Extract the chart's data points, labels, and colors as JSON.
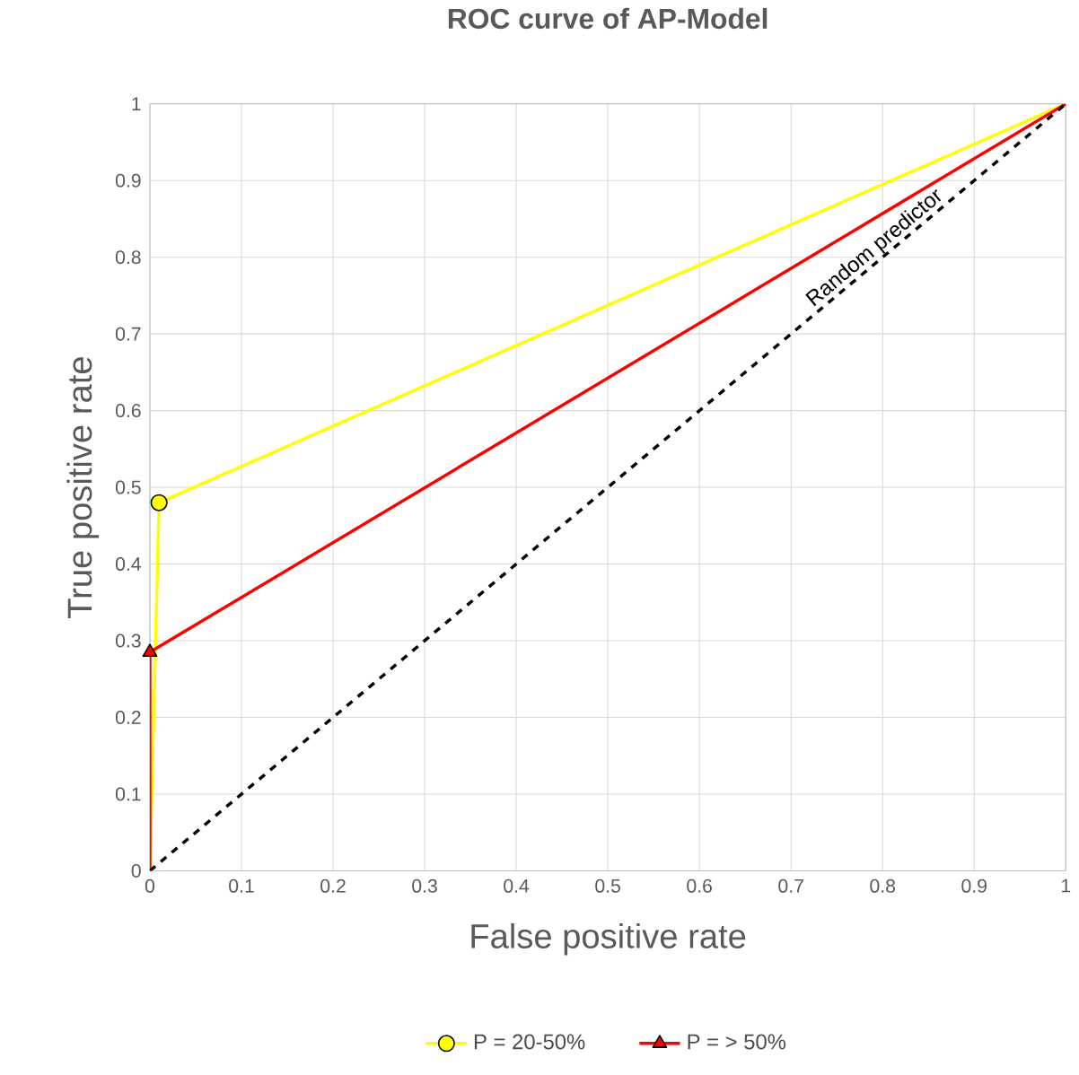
{
  "chart_data": {
    "type": "line",
    "title": "ROC curve of AP-Model",
    "xlabel": "False positive rate",
    "ylabel": "True positive rate",
    "xlim": [
      0,
      1
    ],
    "ylim": [
      0,
      1
    ],
    "xticks": [
      0,
      0.1,
      0.2,
      0.3,
      0.4,
      0.5,
      0.6,
      0.7,
      0.8,
      0.9,
      1
    ],
    "yticks": [
      0,
      0.1,
      0.2,
      0.3,
      0.4,
      0.5,
      0.6,
      0.7,
      0.8,
      0.9,
      1
    ],
    "grid": true,
    "legend": "bottom",
    "series": [
      {
        "name": "P = 20-50%",
        "color": "#ffff00",
        "x": [
          0,
          0.01,
          1
        ],
        "values": [
          0,
          0.48,
          1
        ],
        "marker": "none",
        "line_style": "solid"
      },
      {
        "type": "scatter",
        "color": "#ffff00",
        "x": [
          0.01
        ],
        "values": [
          0.48
        ],
        "marker": "circle"
      },
      {
        "name": "P = > 50%",
        "color": "#ff0000",
        "x": [
          0,
          0,
          1
        ],
        "values": [
          0,
          0.285,
          1
        ],
        "marker": "none",
        "line_style": "solid"
      },
      {
        "type": "scatter",
        "color": "#ff0000",
        "x": [
          0
        ],
        "values": [
          0.285
        ],
        "marker": "triangle"
      },
      {
        "name": "Random predictor",
        "color": "#000000",
        "x": [
          0,
          1
        ],
        "values": [
          0,
          1
        ],
        "marker": "none",
        "line_style": "dashed"
      }
    ]
  }
}
